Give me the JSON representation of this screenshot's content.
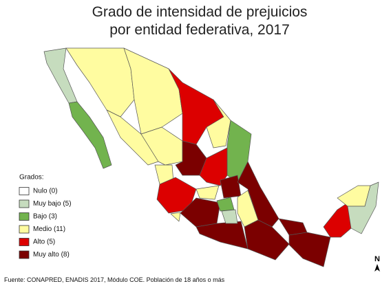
{
  "title": [
    "Grado de intensidad de prejuicios",
    "por entidad federativa, 2017"
  ],
  "legend": {
    "title": "Grados:",
    "items": [
      {
        "label": "Nulo (0)",
        "color": "#ffffff"
      },
      {
        "label": "Muy bajo (5)",
        "color": "#c6dcbe"
      },
      {
        "label": "Bajo (3)",
        "color": "#72b34e"
      },
      {
        "label": "Medio (11)",
        "color": "#fffca0"
      },
      {
        "label": "Alto (5)",
        "color": "#dc0000"
      },
      {
        "label": "Muy alto (8)",
        "color": "#7b0000"
      }
    ]
  },
  "north": "N",
  "source": "Fuente: CONAPRED, ENADIS 2017, Módulo COE. Población de 18 años o más"
}
